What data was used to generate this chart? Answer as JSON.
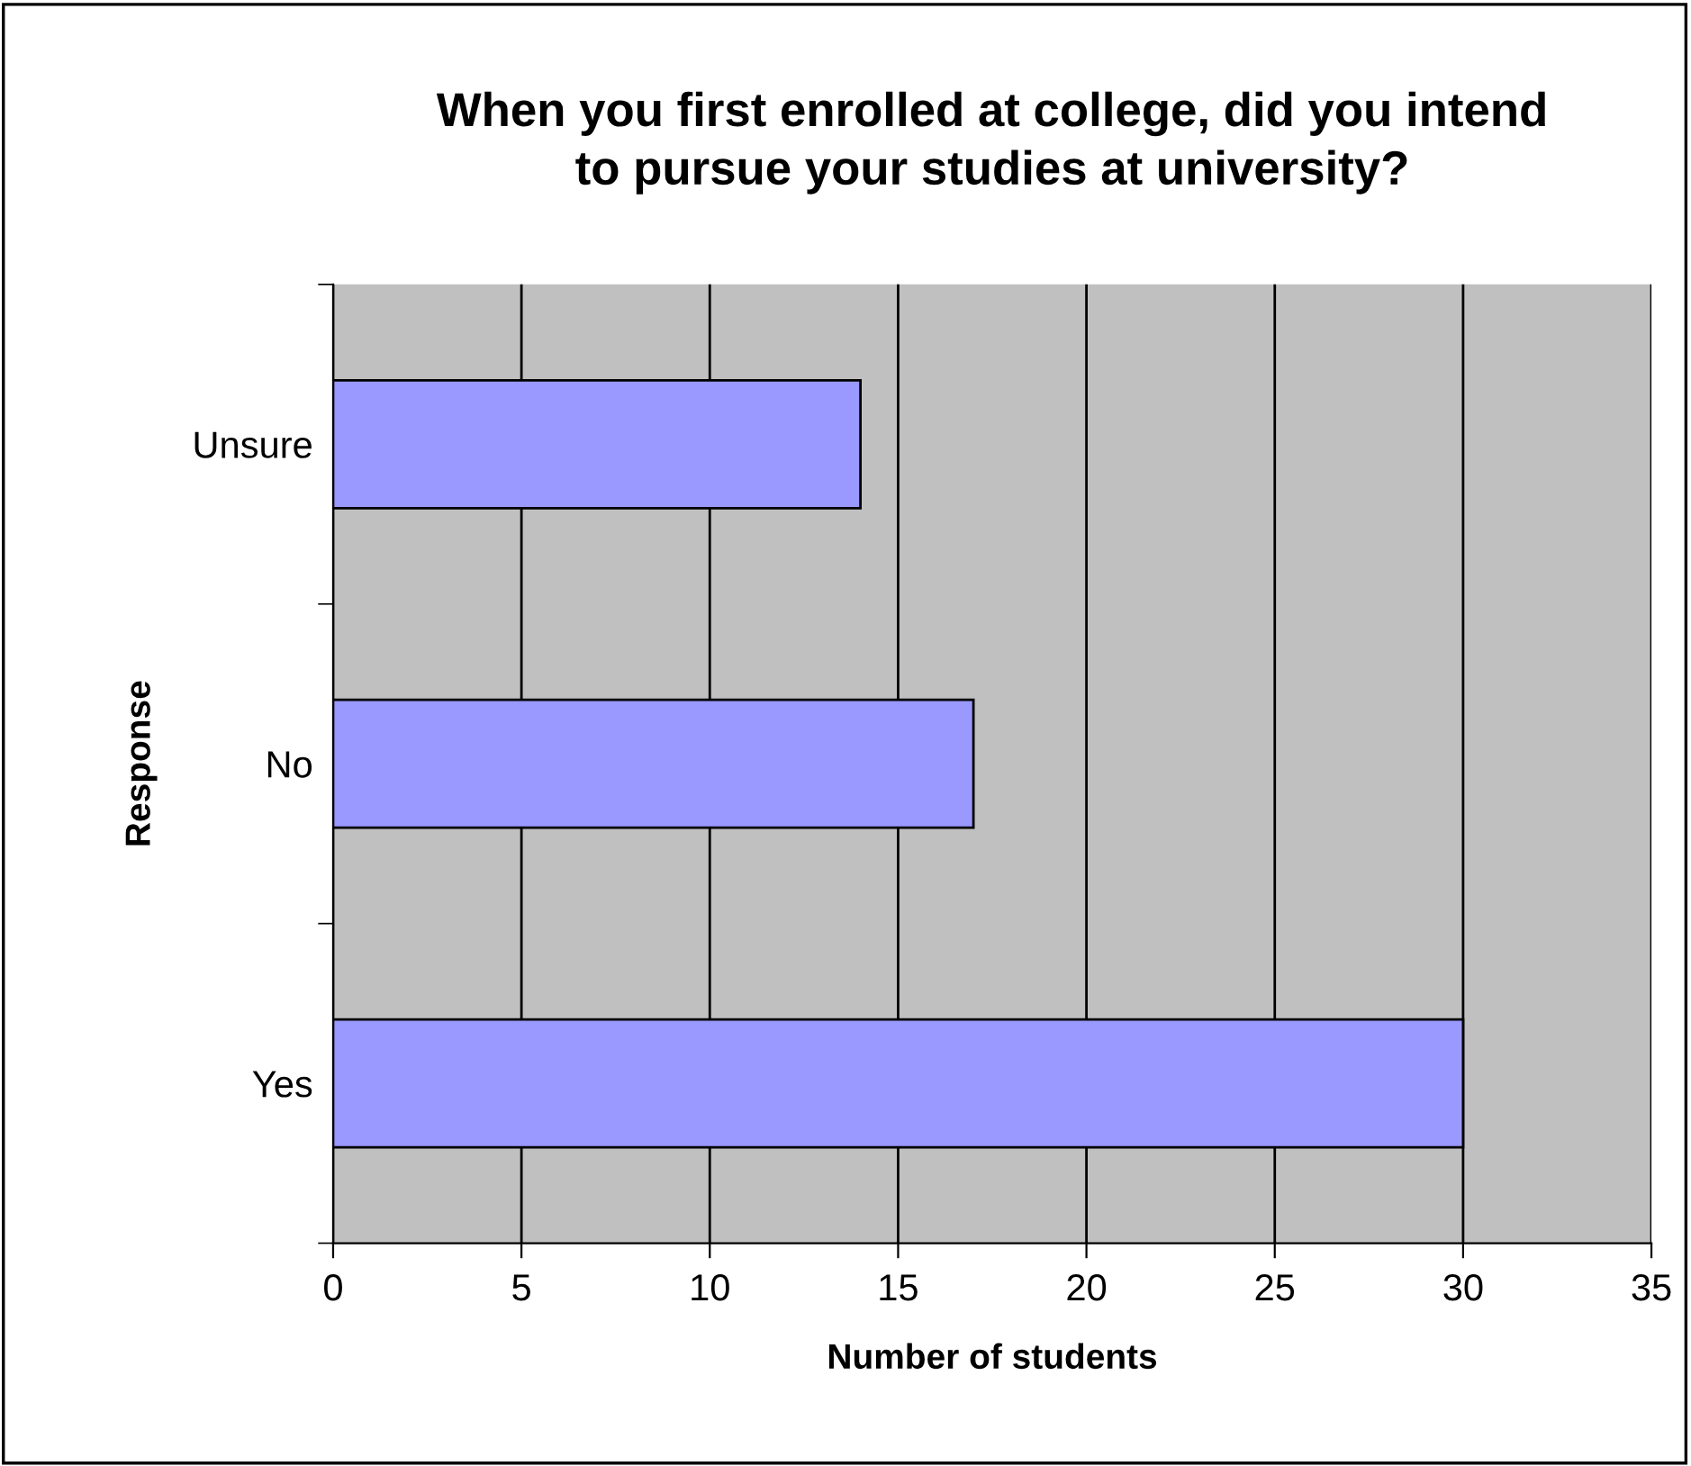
{
  "chart_data": {
    "type": "bar",
    "orientation": "horizontal",
    "title": "When you first enrolled at college, did you intend\nto pursue your studies at university?",
    "xlabel": "Number of students",
    "ylabel": "Response",
    "categories": [
      "Unsure",
      "No",
      "Yes"
    ],
    "values": [
      14,
      17,
      30
    ],
    "color": "#9999ff",
    "xlim": [
      0,
      35
    ],
    "xticks": [
      0,
      5,
      10,
      15,
      20,
      25,
      30,
      35
    ],
    "grid": "x"
  }
}
